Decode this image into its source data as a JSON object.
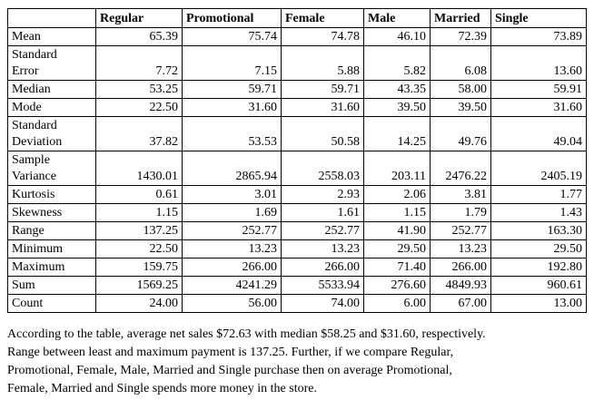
{
  "table": {
    "header": [
      "",
      "Regular",
      "Promotional",
      "Female",
      "Male",
      "Married",
      "Single"
    ],
    "rows": [
      [
        "Mean",
        "65.39",
        "75.74",
        "74.78",
        "46.10",
        "72.39",
        "73.89"
      ],
      [
        "Standard Error",
        "7.72",
        "7.15",
        "5.88",
        "5.82",
        "6.08",
        "13.60"
      ],
      [
        "Median",
        "53.25",
        "59.71",
        "59.71",
        "43.35",
        "58.00",
        "59.91"
      ],
      [
        "Mode",
        "22.50",
        "31.60",
        "31.60",
        "39.50",
        "39.50",
        "31.60"
      ],
      [
        "Standard Deviation",
        "37.82",
        "53.53",
        "50.58",
        "14.25",
        "49.76",
        "49.04"
      ],
      [
        "Sample Variance",
        "1430.01",
        "2865.94",
        "2558.03",
        "203.11",
        "2476.22",
        "2405.19"
      ],
      [
        "Kurtosis",
        "0.61",
        "3.01",
        "2.93",
        "2.06",
        "3.81",
        "1.77"
      ],
      [
        "Skewness",
        "1.15",
        "1.69",
        "1.61",
        "1.15",
        "1.79",
        "1.43"
      ],
      [
        "Range",
        "137.25",
        "252.77",
        "252.77",
        "41.90",
        "252.77",
        "163.30"
      ],
      [
        "Minimum",
        "22.50",
        "13.23",
        "13.23",
        "29.50",
        "13.23",
        "29.50"
      ],
      [
        "Maximum",
        "159.75",
        "266.00",
        "266.00",
        "71.40",
        "266.00",
        "192.80"
      ],
      [
        "Sum",
        "1569.25",
        "4241.29",
        "5533.94",
        "276.60",
        "4849.93",
        "960.61"
      ],
      [
        "Count",
        "24.00",
        "56.00",
        "74.00",
        "6.00",
        "67.00",
        "13.00"
      ]
    ]
  },
  "paragraph": [
    "According to the table, average net sales $72.63  with median $58.25 and $31.60, respectively.",
    "Range between least and maximum payment is 137.25. Further, if we compare Regular,",
    "Promotional, Female, Male, Married and Single purchase then on average Promotional,",
    "Female, Married and Single spends more money in the store."
  ]
}
